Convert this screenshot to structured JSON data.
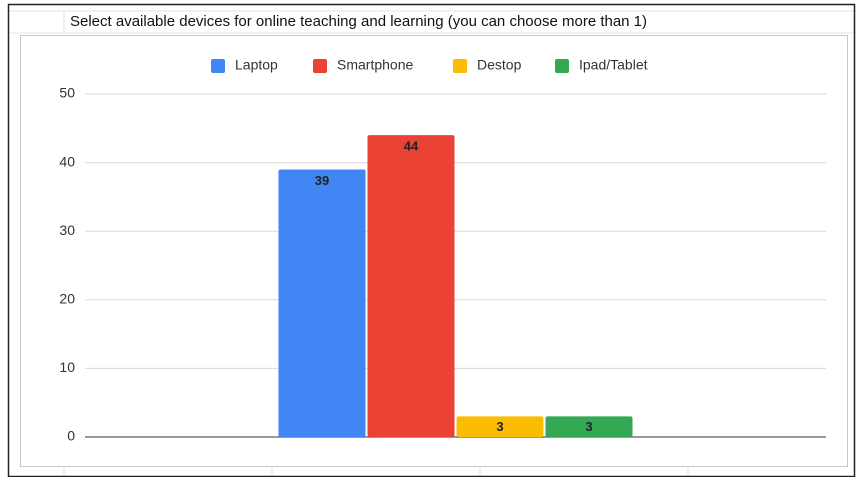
{
  "chart_data": {
    "type": "bar",
    "title": "Select available devices for online teaching and learning (you can choose more than 1)",
    "categories": [
      null
    ],
    "series": [
      {
        "name": "Laptop",
        "color": "#4285f4",
        "values": [
          39
        ]
      },
      {
        "name": "Smartphone",
        "color": "#ea4335",
        "values": [
          44
        ]
      },
      {
        "name": "Destop",
        "color": "#fbbc04",
        "values": [
          3
        ]
      },
      {
        "name": "Ipad/Tablet",
        "color": "#34a853",
        "values": [
          3
        ]
      }
    ],
    "ylim": [
      0,
      50
    ],
    "yticks": [
      0,
      10,
      20,
      30,
      40,
      50
    ],
    "grid": true,
    "legend": "top"
  }
}
